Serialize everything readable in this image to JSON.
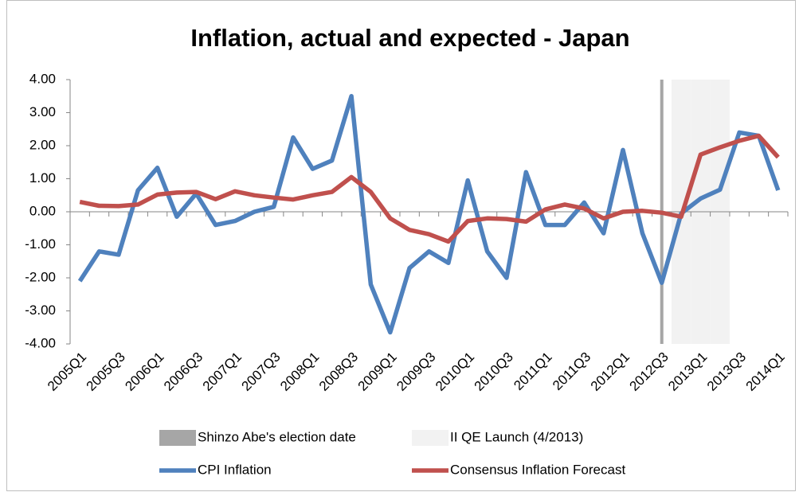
{
  "chart_data": {
    "type": "line",
    "title": "Inflation, actual and expected - Japan",
    "categories": [
      "2005Q1",
      null,
      "2005Q3",
      null,
      "2006Q1",
      null,
      "2006Q3",
      null,
      "2007Q1",
      null,
      "2007Q3",
      null,
      "2008Q1",
      null,
      "2008Q3",
      null,
      "2009Q1",
      null,
      "2009Q3",
      null,
      "2010Q1",
      null,
      "2010Q3",
      null,
      "2011Q1",
      null,
      "2011Q3",
      null,
      "2012Q1",
      null,
      "2012Q3",
      null,
      "2013Q1",
      null,
      "2013Q3",
      null,
      "2014Q1"
    ],
    "ylim": [
      -4,
      4
    ],
    "yticks": [
      {
        "value": -4,
        "label": "-4.00"
      },
      {
        "value": -3,
        "label": "-3.00"
      },
      {
        "value": -2,
        "label": "-2.00"
      },
      {
        "value": -1,
        "label": "-1.00"
      },
      {
        "value": 0,
        "label": "0.00"
      },
      {
        "value": 1,
        "label": "1.00"
      },
      {
        "value": 2,
        "label": "2.00"
      },
      {
        "value": 3,
        "label": "3.00"
      },
      {
        "value": 4,
        "label": "4.00"
      }
    ],
    "y2lim": [
      0,
      1
    ],
    "series": [
      {
        "name": "Shinzo Abe's election date",
        "type": "bar",
        "axis": "y2",
        "color": "#a6a6a6",
        "values": [
          null,
          null,
          null,
          null,
          null,
          null,
          null,
          null,
          null,
          null,
          null,
          null,
          null,
          null,
          null,
          null,
          null,
          null,
          null,
          null,
          null,
          null,
          null,
          null,
          null,
          null,
          null,
          null,
          null,
          null,
          1,
          null,
          null,
          null,
          null,
          null,
          null
        ]
      },
      {
        "name": "II QE Launch (4/2013)",
        "type": "bar",
        "axis": "y2",
        "color": "#f2f2f2",
        "values": [
          null,
          null,
          null,
          null,
          null,
          null,
          null,
          null,
          null,
          null,
          null,
          null,
          null,
          null,
          null,
          null,
          null,
          null,
          null,
          null,
          null,
          null,
          null,
          null,
          null,
          null,
          null,
          null,
          null,
          null,
          null,
          1,
          1,
          1,
          null,
          null,
          null
        ]
      },
      {
        "name": "CPI Inflation",
        "type": "line",
        "color": "#4f81bd",
        "values": [
          -2.1,
          -1.2,
          -1.3,
          0.65,
          1.33,
          -0.15,
          0.55,
          -0.4,
          -0.28,
          0.0,
          0.15,
          2.25,
          1.3,
          1.55,
          3.5,
          -2.2,
          -3.65,
          -1.7,
          -1.2,
          -1.55,
          0.95,
          -1.2,
          -2.0,
          1.2,
          -0.4,
          -0.4,
          0.28,
          -0.65,
          1.87,
          -0.65,
          -2.15,
          -0.05,
          0.4,
          0.67,
          2.4,
          2.3,
          0.65
        ]
      },
      {
        "name": "Consensus Inflation Forecast",
        "type": "line",
        "color": "#c0504d",
        "values": [
          0.3,
          0.18,
          0.17,
          0.22,
          0.52,
          0.58,
          0.6,
          0.38,
          0.62,
          0.5,
          0.43,
          0.37,
          0.5,
          0.6,
          1.05,
          0.6,
          -0.2,
          -0.55,
          -0.68,
          -0.9,
          -0.28,
          -0.2,
          -0.22,
          -0.3,
          0.07,
          0.22,
          0.1,
          -0.2,
          0.0,
          0.03,
          -0.03,
          -0.15,
          1.73,
          1.95,
          2.15,
          2.3,
          1.65
        ]
      }
    ]
  }
}
